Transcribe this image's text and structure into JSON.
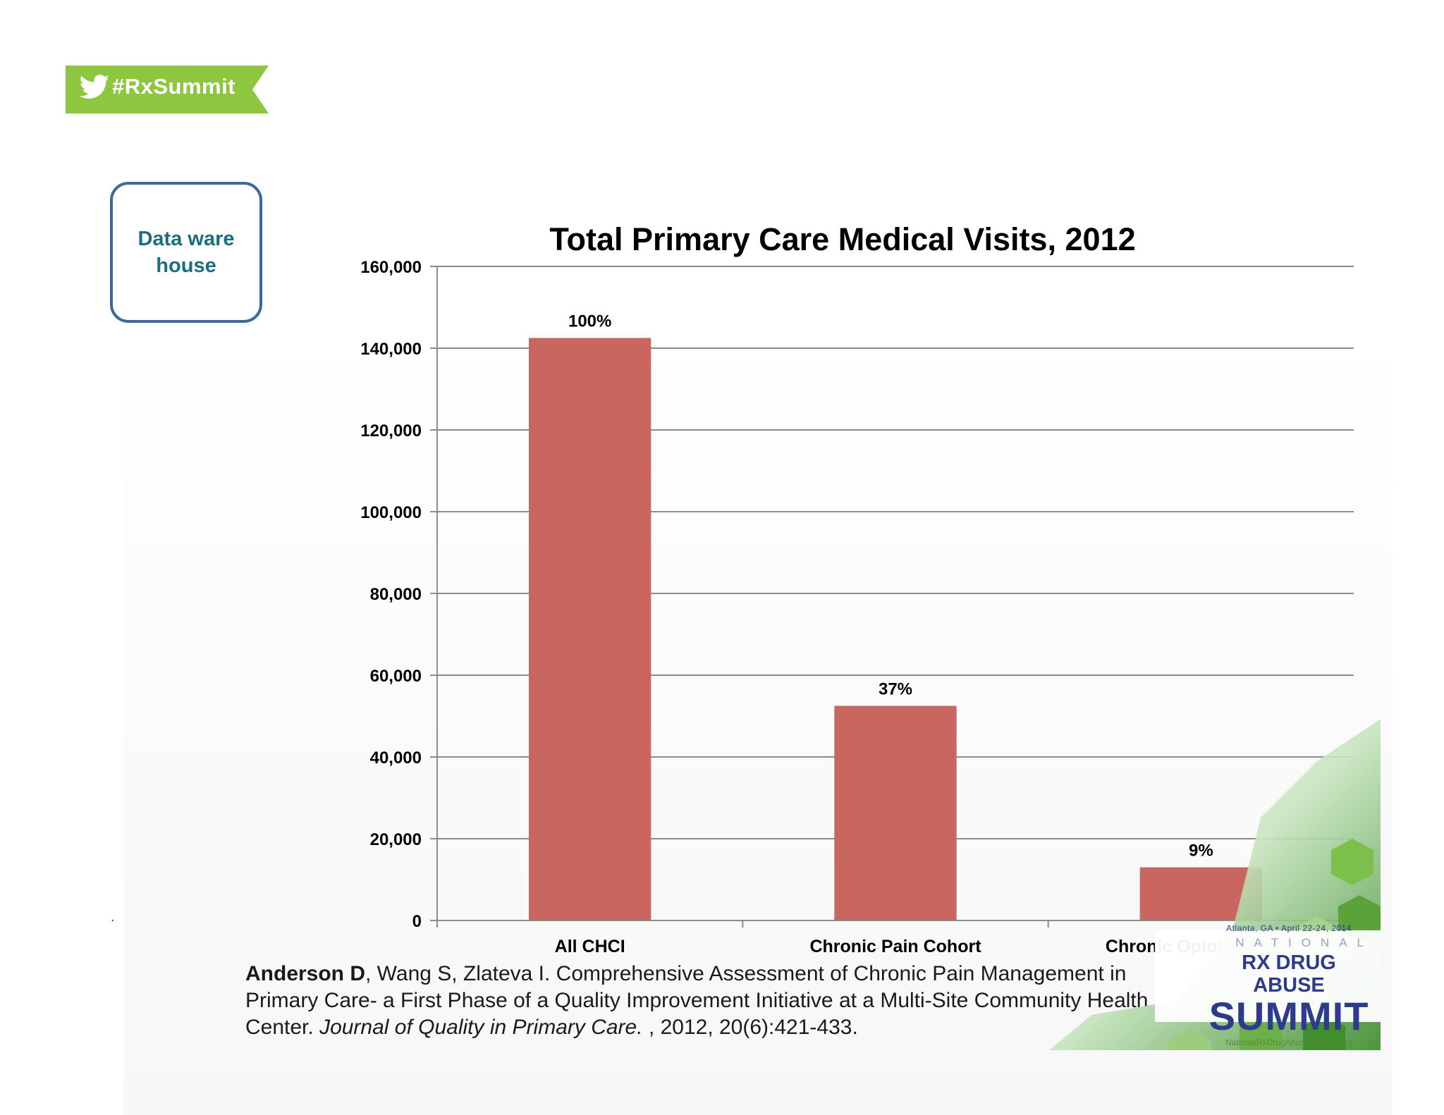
{
  "badge": {
    "icon": "twitter-bird-icon",
    "text": "#RxSummit",
    "color": "#8dc63f"
  },
  "callout": {
    "text": "Data warehouse",
    "border_color": "#3d6a98",
    "text_color": "#1b6e7e"
  },
  "bullet": ".",
  "chart_data": {
    "type": "bar",
    "title": "Total Primary Care Medical Visits, 2012",
    "categories": [
      "All CHCI",
      "Chronic Pain Cohort",
      "Chronic Opioid Subset"
    ],
    "values": [
      142500,
      52500,
      13000
    ],
    "data_labels": [
      "100%",
      "37%",
      "9%"
    ],
    "yticks": [
      "0",
      "20,000",
      "40,000",
      "60,000",
      "80,000",
      "100,000",
      "120,000",
      "140,000",
      "160,000"
    ],
    "ylim": [
      0,
      160000
    ],
    "ytick_step": 20000,
    "grid": true,
    "bar_color": "#c9665f"
  },
  "citation": {
    "author": "Anderson D",
    "rest": ", Wang S, Zlateva I. Comprehensive Assessment of Chronic Pain Management in Primary Care- a First Phase of a Quality Improvement Initiative at a Multi-Site Community Health Center. ",
    "journal": "Journal of Quality in Primary Care. ",
    "tail": ", 2012, 20(6):421-433."
  },
  "logo": {
    "dateline": "Atlanta, GA • April 22-24, 2014",
    "national": "NATIONAL",
    "line1": "RX DRUG ABUSE",
    "line2": "SUMMIT",
    "url": "NationalRxDrugAbuseSummit.org"
  }
}
